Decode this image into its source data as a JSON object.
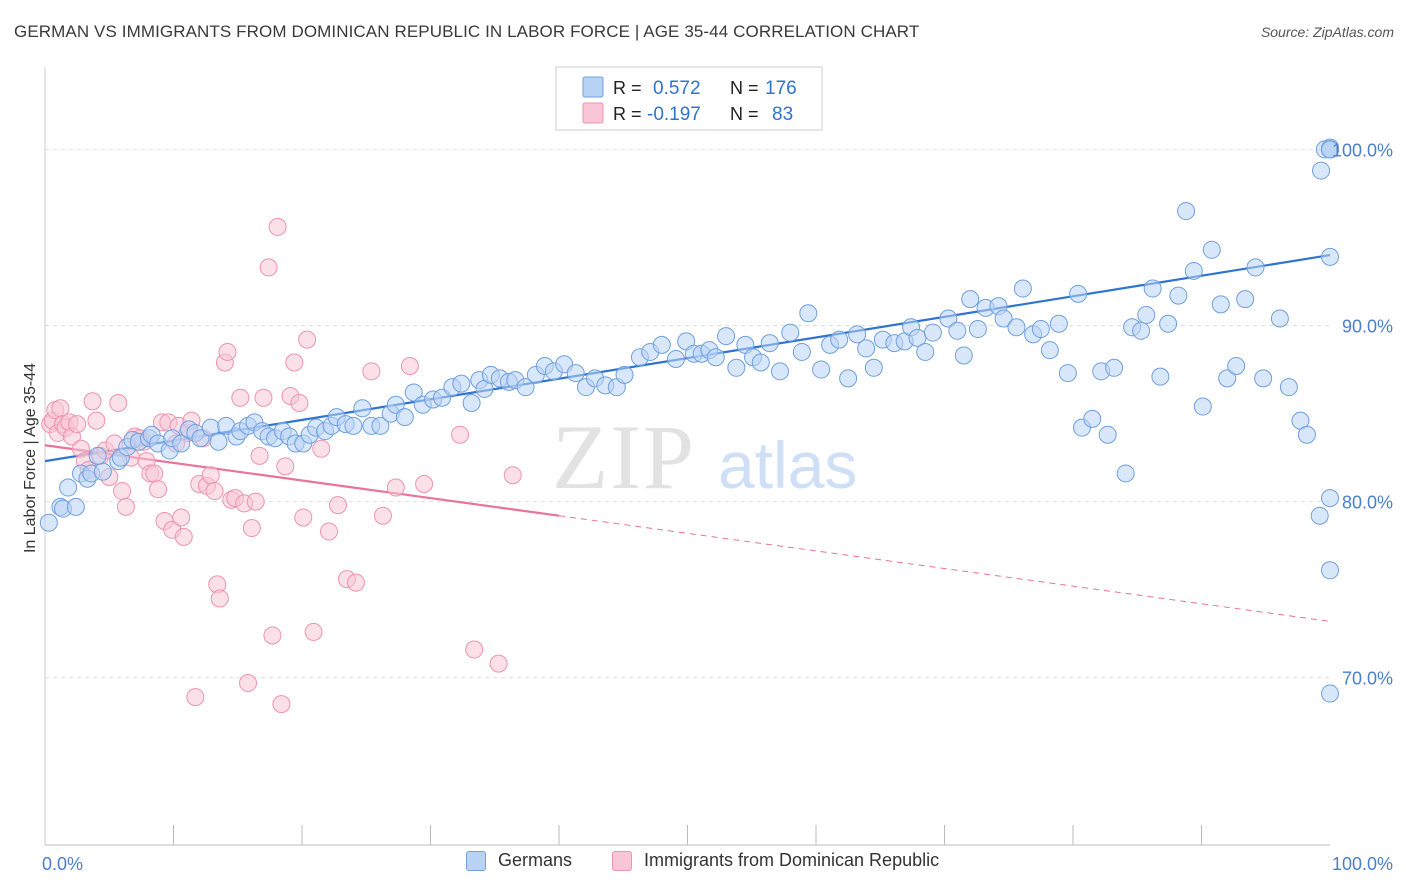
{
  "title": "GERMAN VS IMMIGRANTS FROM DOMINICAN REPUBLIC IN LABOR FORCE | AGE 35-44 CORRELATION CHART",
  "source": "Source: ZipAtlas.com",
  "watermark": {
    "zip": "ZIP",
    "atlas": "atlas"
  },
  "colors": {
    "german_fill": "#b9d3f5",
    "german_stroke": "#6fa0df",
    "german_line": "#2e74d0",
    "dominican_fill": "#f8c6d6",
    "dominican_stroke": "#ee93b1",
    "dominican_line": "#e8739b",
    "tick_label_blue": "#4a7fcf",
    "grid": "#dddddd"
  },
  "stats_legend": {
    "rows": [
      {
        "r_label": "R =",
        "r_value": "0.572",
        "n_label": "N =",
        "n_value": "176"
      },
      {
        "r_label": "R =",
        "r_value": "-0.197",
        "n_label": "N =",
        "n_value": "83"
      }
    ]
  },
  "bottom_legend": [
    "Germans",
    "Immigrants from Dominican Republic"
  ],
  "chart_data": {
    "type": "scatter",
    "title": "GERMAN VS IMMIGRANTS FROM DOMINICAN REPUBLIC IN LABOR FORCE | AGE 35-44 CORRELATION CHART",
    "xlabel": "",
    "ylabel": "In Labor Force | Age 35-44",
    "xlim": [
      0,
      100
    ],
    "ylim": [
      60.5,
      104
    ],
    "x_tick_labels": [
      {
        "value": 0,
        "label": "0.0%"
      },
      {
        "value": 100,
        "label": "100.0%"
      }
    ],
    "y_tick_labels": [
      {
        "value": 70,
        "label": "70.0%"
      },
      {
        "value": 80,
        "label": "80.0%"
      },
      {
        "value": 90,
        "label": "90.0%"
      },
      {
        "value": 100,
        "label": "100.0%"
      }
    ],
    "grid": true,
    "legend_position": "top-center",
    "series": [
      {
        "name": "Germans",
        "r": 0.572,
        "n": 176,
        "trend": {
          "x": [
            0,
            100
          ],
          "y": [
            82.3,
            94.0
          ]
        },
        "points": [
          [
            0.3,
            78.8
          ],
          [
            1.2,
            79.7
          ],
          [
            1.4,
            79.6
          ],
          [
            2.4,
            79.7
          ],
          [
            1.8,
            80.8
          ],
          [
            2.8,
            81.6
          ],
          [
            3.3,
            81.3
          ],
          [
            3.6,
            81.6
          ],
          [
            4.5,
            81.7
          ],
          [
            4.1,
            82.6
          ],
          [
            5.7,
            82.3
          ],
          [
            5.9,
            82.5
          ],
          [
            6.4,
            83.1
          ],
          [
            6.8,
            83.5
          ],
          [
            7.3,
            83.4
          ],
          [
            8.1,
            83.6
          ],
          [
            8.3,
            83.8
          ],
          [
            8.8,
            83.3
          ],
          [
            9.7,
            82.9
          ],
          [
            9.9,
            83.6
          ],
          [
            10.6,
            83.3
          ],
          [
            11.2,
            84.1
          ],
          [
            11.7,
            83.9
          ],
          [
            12.1,
            83.6
          ],
          [
            12.9,
            84.2
          ],
          [
            13.5,
            83.4
          ],
          [
            14.1,
            84.3
          ],
          [
            14.9,
            83.7
          ],
          [
            15.2,
            84.0
          ],
          [
            15.8,
            84.3
          ],
          [
            16.3,
            84.5
          ],
          [
            16.9,
            84.0
          ],
          [
            17.4,
            83.7
          ],
          [
            17.9,
            83.6
          ],
          [
            18.5,
            84.0
          ],
          [
            19.0,
            83.7
          ],
          [
            19.5,
            83.3
          ],
          [
            20.1,
            83.3
          ],
          [
            20.6,
            83.8
          ],
          [
            21.1,
            84.2
          ],
          [
            21.8,
            84.0
          ],
          [
            22.3,
            84.3
          ],
          [
            22.7,
            84.8
          ],
          [
            23.4,
            84.4
          ],
          [
            24.0,
            84.3
          ],
          [
            24.7,
            85.3
          ],
          [
            25.4,
            84.3
          ],
          [
            26.1,
            84.3
          ],
          [
            26.9,
            85.0
          ],
          [
            27.3,
            85.5
          ],
          [
            28.0,
            84.8
          ],
          [
            28.7,
            86.2
          ],
          [
            29.4,
            85.5
          ],
          [
            30.2,
            85.8
          ],
          [
            30.9,
            85.9
          ],
          [
            31.7,
            86.5
          ],
          [
            32.4,
            86.7
          ],
          [
            33.2,
            85.6
          ],
          [
            33.8,
            86.9
          ],
          [
            34.2,
            86.4
          ],
          [
            34.7,
            87.2
          ],
          [
            35.4,
            87.0
          ],
          [
            36.1,
            86.8
          ],
          [
            36.6,
            86.9
          ],
          [
            37.4,
            86.5
          ],
          [
            38.2,
            87.2
          ],
          [
            38.9,
            87.7
          ],
          [
            39.6,
            87.4
          ],
          [
            40.4,
            87.8
          ],
          [
            41.3,
            87.3
          ],
          [
            42.1,
            86.5
          ],
          [
            42.8,
            87.0
          ],
          [
            43.6,
            86.6
          ],
          [
            44.5,
            86.5
          ],
          [
            45.1,
            87.2
          ],
          [
            46.3,
            88.2
          ],
          [
            47.1,
            88.5
          ],
          [
            48.0,
            88.9
          ],
          [
            49.1,
            88.1
          ],
          [
            49.9,
            89.1
          ],
          [
            50.5,
            88.4
          ],
          [
            51.1,
            88.4
          ],
          [
            51.7,
            88.6
          ],
          [
            52.2,
            88.2
          ],
          [
            53.0,
            89.4
          ],
          [
            53.8,
            87.6
          ],
          [
            54.5,
            88.9
          ],
          [
            55.1,
            88.2
          ],
          [
            55.7,
            87.9
          ],
          [
            56.4,
            89.0
          ],
          [
            57.2,
            87.4
          ],
          [
            58.0,
            89.6
          ],
          [
            58.9,
            88.5
          ],
          [
            59.4,
            90.7
          ],
          [
            60.4,
            87.5
          ],
          [
            61.1,
            88.9
          ],
          [
            61.8,
            89.2
          ],
          [
            62.5,
            87.0
          ],
          [
            63.2,
            89.5
          ],
          [
            63.9,
            88.7
          ],
          [
            64.5,
            87.6
          ],
          [
            65.2,
            89.2
          ],
          [
            66.1,
            89.0
          ],
          [
            66.9,
            89.1
          ],
          [
            67.4,
            89.9
          ],
          [
            67.9,
            89.3
          ],
          [
            68.5,
            88.5
          ],
          [
            69.1,
            89.6
          ],
          [
            70.3,
            90.4
          ],
          [
            71.0,
            89.7
          ],
          [
            71.5,
            88.3
          ],
          [
            72.0,
            91.5
          ],
          [
            72.6,
            89.8
          ],
          [
            73.2,
            91.0
          ],
          [
            74.2,
            91.1
          ],
          [
            74.6,
            90.4
          ],
          [
            75.6,
            89.9
          ],
          [
            76.1,
            92.1
          ],
          [
            76.9,
            89.5
          ],
          [
            77.5,
            89.8
          ],
          [
            78.2,
            88.6
          ],
          [
            78.9,
            90.1
          ],
          [
            79.6,
            87.3
          ],
          [
            80.4,
            91.8
          ],
          [
            80.7,
            84.2
          ],
          [
            81.5,
            84.7
          ],
          [
            82.2,
            87.4
          ],
          [
            82.7,
            83.8
          ],
          [
            83.2,
            87.6
          ],
          [
            84.1,
            81.6
          ],
          [
            84.6,
            89.9
          ],
          [
            85.3,
            89.7
          ],
          [
            85.7,
            90.6
          ],
          [
            86.2,
            92.1
          ],
          [
            86.8,
            87.1
          ],
          [
            87.4,
            90.1
          ],
          [
            88.2,
            91.7
          ],
          [
            88.8,
            96.5
          ],
          [
            89.4,
            93.1
          ],
          [
            90.1,
            85.4
          ],
          [
            90.8,
            94.3
          ],
          [
            91.5,
            91.2
          ],
          [
            92.0,
            87.0
          ],
          [
            92.7,
            87.7
          ],
          [
            93.4,
            91.5
          ],
          [
            94.2,
            93.3
          ],
          [
            94.8,
            87.0
          ],
          [
            96.1,
            90.4
          ],
          [
            96.8,
            86.5
          ],
          [
            97.7,
            84.6
          ],
          [
            98.2,
            83.8
          ],
          [
            99.2,
            79.2
          ],
          [
            99.3,
            98.8
          ],
          [
            100.0,
            100.1
          ],
          [
            99.6,
            100.0
          ],
          [
            100.0,
            69.1
          ],
          [
            100.0,
            76.1
          ],
          [
            100.0,
            80.2
          ],
          [
            100.0,
            100.0
          ],
          [
            100.0,
            100.0
          ],
          [
            100.0,
            100.0
          ],
          [
            100.0,
            100.0
          ],
          [
            100.0,
            100.0
          ],
          [
            100.0,
            100.0
          ],
          [
            100.0,
            100.0
          ],
          [
            100.0,
            100.0
          ],
          [
            100.0,
            100.0
          ],
          [
            100.0,
            100.0
          ],
          [
            100.0,
            100.0
          ],
          [
            100.0,
            100.0
          ],
          [
            100.0,
            93.9
          ]
        ]
      },
      {
        "name": "Immigrants from Dominican Republic",
        "r": -0.197,
        "n": 83,
        "trend": {
          "x": [
            0,
            100
          ],
          "y": [
            83.2,
            73.2
          ]
        },
        "trend_solid_until": 40,
        "points": [
          [
            0.4,
            84.4
          ],
          [
            0.6,
            84.6
          ],
          [
            0.8,
            85.2
          ],
          [
            1.0,
            83.9
          ],
          [
            1.2,
            85.3
          ],
          [
            1.4,
            84.4
          ],
          [
            1.6,
            84.2
          ],
          [
            1.9,
            84.5
          ],
          [
            2.1,
            83.7
          ],
          [
            2.5,
            84.4
          ],
          [
            2.8,
            83.0
          ],
          [
            3.1,
            82.3
          ],
          [
            3.4,
            81.8
          ],
          [
            3.7,
            85.7
          ],
          [
            4.0,
            84.6
          ],
          [
            4.3,
            82.6
          ],
          [
            4.7,
            82.9
          ],
          [
            5.0,
            81.4
          ],
          [
            5.4,
            83.3
          ],
          [
            5.7,
            85.6
          ],
          [
            6.0,
            80.6
          ],
          [
            6.3,
            79.7
          ],
          [
            6.7,
            82.5
          ],
          [
            7.0,
            83.7
          ],
          [
            7.4,
            83.6
          ],
          [
            7.7,
            83.4
          ],
          [
            7.9,
            82.3
          ],
          [
            8.2,
            81.6
          ],
          [
            8.5,
            81.6
          ],
          [
            8.8,
            80.7
          ],
          [
            9.1,
            84.5
          ],
          [
            9.3,
            78.9
          ],
          [
            9.6,
            84.5
          ],
          [
            9.9,
            78.4
          ],
          [
            10.2,
            83.3
          ],
          [
            10.4,
            84.3
          ],
          [
            10.6,
            79.1
          ],
          [
            10.8,
            78.0
          ],
          [
            11.1,
            83.9
          ],
          [
            11.4,
            84.6
          ],
          [
            11.7,
            68.9
          ],
          [
            12.0,
            81.0
          ],
          [
            12.3,
            83.6
          ],
          [
            12.6,
            80.9
          ],
          [
            12.9,
            81.5
          ],
          [
            13.2,
            80.6
          ],
          [
            13.4,
            75.3
          ],
          [
            13.6,
            74.5
          ],
          [
            14.0,
            87.9
          ],
          [
            14.2,
            88.5
          ],
          [
            14.5,
            80.1
          ],
          [
            14.8,
            80.2
          ],
          [
            15.2,
            85.9
          ],
          [
            15.5,
            79.9
          ],
          [
            15.8,
            69.7
          ],
          [
            16.1,
            78.5
          ],
          [
            16.4,
            80.0
          ],
          [
            16.7,
            82.6
          ],
          [
            17.0,
            85.9
          ],
          [
            17.4,
            93.3
          ],
          [
            17.7,
            72.4
          ],
          [
            18.1,
            95.6
          ],
          [
            18.4,
            68.5
          ],
          [
            18.7,
            82.0
          ],
          [
            19.1,
            86.0
          ],
          [
            19.4,
            87.9
          ],
          [
            19.8,
            85.6
          ],
          [
            20.1,
            79.1
          ],
          [
            20.4,
            89.2
          ],
          [
            20.9,
            72.6
          ],
          [
            21.5,
            83.0
          ],
          [
            22.1,
            78.3
          ],
          [
            22.8,
            79.8
          ],
          [
            23.5,
            75.6
          ],
          [
            24.2,
            75.4
          ],
          [
            25.4,
            87.4
          ],
          [
            26.3,
            79.2
          ],
          [
            27.3,
            80.8
          ],
          [
            28.4,
            87.7
          ],
          [
            29.5,
            81.0
          ],
          [
            32.3,
            83.8
          ],
          [
            33.4,
            71.6
          ],
          [
            35.3,
            70.8
          ],
          [
            36.4,
            81.5
          ]
        ]
      }
    ]
  }
}
